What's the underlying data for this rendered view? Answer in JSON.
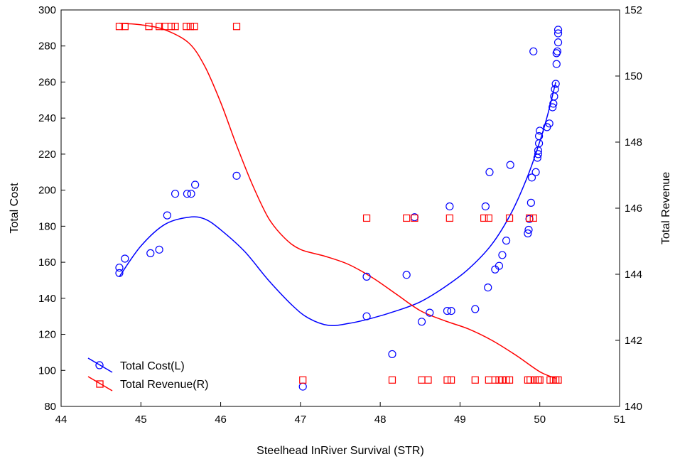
{
  "chart_data": {
    "type": "scatter",
    "title": "",
    "xlabel": "Steelhead InRiver Survival (STR)",
    "ylabel_left": "Total Cost",
    "ylabel_right": "Total Revenue",
    "xlim": [
      44,
      51
    ],
    "ylim_left": [
      80,
      300
    ],
    "ylim_right": [
      140,
      152
    ],
    "x_ticks": [
      "44",
      "45",
      "46",
      "47",
      "48",
      "49",
      "50",
      "51"
    ],
    "y_left_ticks": [
      "80",
      "100",
      "120",
      "140",
      "160",
      "180",
      "200",
      "220",
      "240",
      "260",
      "280",
      "300"
    ],
    "y_right_ticks": [
      "140",
      "142",
      "144",
      "146",
      "148",
      "150",
      "152"
    ],
    "grid": false,
    "legend_position": "bottom-left",
    "series": [
      {
        "name": "Total Cost(L)",
        "axis": "left",
        "color": "#0000ff",
        "marker": "circle",
        "points": [
          [
            44.73,
            157
          ],
          [
            44.73,
            154
          ],
          [
            44.8,
            162
          ],
          [
            45.12,
            165
          ],
          [
            45.23,
            167
          ],
          [
            45.33,
            186
          ],
          [
            45.43,
            198
          ],
          [
            45.58,
            198
          ],
          [
            45.63,
            198
          ],
          [
            45.68,
            203
          ],
          [
            46.2,
            208
          ],
          [
            47.03,
            91
          ],
          [
            47.83,
            152
          ],
          [
            47.83,
            130
          ],
          [
            48.15,
            109
          ],
          [
            48.33,
            153
          ],
          [
            48.43,
            185
          ],
          [
            48.52,
            127
          ],
          [
            48.62,
            132
          ],
          [
            48.84,
            133
          ],
          [
            48.87,
            191
          ],
          [
            48.89,
            133
          ],
          [
            49.19,
            134
          ],
          [
            49.32,
            191
          ],
          [
            49.35,
            146
          ],
          [
            49.37,
            210
          ],
          [
            49.44,
            156
          ],
          [
            49.49,
            158
          ],
          [
            49.53,
            164
          ],
          [
            49.58,
            172
          ],
          [
            49.63,
            214
          ],
          [
            49.85,
            176
          ],
          [
            49.86,
            178
          ],
          [
            49.87,
            184
          ],
          [
            49.89,
            193
          ],
          [
            49.9,
            207
          ],
          [
            49.92,
            277
          ],
          [
            49.95,
            210
          ],
          [
            49.97,
            218
          ],
          [
            49.98,
            220
          ],
          [
            49.98,
            222
          ],
          [
            49.99,
            226
          ],
          [
            49.99,
            230
          ],
          [
            50.0,
            233
          ],
          [
            50.09,
            235
          ],
          [
            50.12,
            237
          ],
          [
            50.16,
            246
          ],
          [
            50.17,
            248
          ],
          [
            50.18,
            252
          ],
          [
            50.19,
            256
          ],
          [
            50.2,
            259
          ],
          [
            50.21,
            270
          ],
          [
            50.21,
            276
          ],
          [
            50.22,
            277
          ],
          [
            50.23,
            282
          ],
          [
            50.23,
            287
          ],
          [
            50.23,
            289
          ]
        ],
        "fit": [
          [
            44.73,
            152
          ],
          [
            45.0,
            169
          ],
          [
            45.3,
            181
          ],
          [
            45.6,
            185
          ],
          [
            45.8,
            184
          ],
          [
            46.0,
            178
          ],
          [
            46.3,
            166
          ],
          [
            46.6,
            150
          ],
          [
            46.9,
            136
          ],
          [
            47.1,
            129
          ],
          [
            47.35,
            125
          ],
          [
            47.6,
            126
          ],
          [
            47.9,
            129
          ],
          [
            48.2,
            133
          ],
          [
            48.5,
            138
          ],
          [
            48.8,
            146
          ],
          [
            49.1,
            156
          ],
          [
            49.4,
            170
          ],
          [
            49.65,
            188
          ],
          [
            49.85,
            208
          ],
          [
            50.0,
            227
          ],
          [
            50.1,
            242
          ],
          [
            50.2,
            260
          ]
        ]
      },
      {
        "name": "Total Revenue(R)",
        "axis": "right",
        "color": "#ff0000",
        "marker": "square",
        "points": [
          [
            44.73,
            151.5
          ],
          [
            44.8,
            151.5
          ],
          [
            45.1,
            151.5
          ],
          [
            45.23,
            151.5
          ],
          [
            45.3,
            151.5
          ],
          [
            45.38,
            151.5
          ],
          [
            45.43,
            151.5
          ],
          [
            45.57,
            151.5
          ],
          [
            45.62,
            151.5
          ],
          [
            45.67,
            151.5
          ],
          [
            46.2,
            151.5
          ],
          [
            47.03,
            140.8
          ],
          [
            47.83,
            145.7
          ],
          [
            48.15,
            140.8
          ],
          [
            48.33,
            145.7
          ],
          [
            48.43,
            145.7
          ],
          [
            48.52,
            140.8
          ],
          [
            48.6,
            140.8
          ],
          [
            48.84,
            140.8
          ],
          [
            48.87,
            145.7
          ],
          [
            48.89,
            140.8
          ],
          [
            49.19,
            140.8
          ],
          [
            49.3,
            145.7
          ],
          [
            49.36,
            145.7
          ],
          [
            49.36,
            140.8
          ],
          [
            49.44,
            140.8
          ],
          [
            49.49,
            140.8
          ],
          [
            49.53,
            140.8
          ],
          [
            49.58,
            140.8
          ],
          [
            49.62,
            145.7
          ],
          [
            49.62,
            140.8
          ],
          [
            49.85,
            140.8
          ],
          [
            49.87,
            145.7
          ],
          [
            49.88,
            140.8
          ],
          [
            49.92,
            145.7
          ],
          [
            49.94,
            140.8
          ],
          [
            49.98,
            140.8
          ],
          [
            50.0,
            140.8
          ],
          [
            50.13,
            140.8
          ],
          [
            50.17,
            140.8
          ],
          [
            50.2,
            140.8
          ],
          [
            50.23,
            140.8
          ]
        ],
        "fit": [
          [
            44.73,
            151.6
          ],
          [
            45.0,
            151.55
          ],
          [
            45.3,
            151.4
          ],
          [
            45.6,
            151.0
          ],
          [
            45.8,
            150.3
          ],
          [
            46.0,
            149.2
          ],
          [
            46.2,
            147.9
          ],
          [
            46.4,
            146.7
          ],
          [
            46.6,
            145.7
          ],
          [
            46.8,
            145.1
          ],
          [
            47.0,
            144.75
          ],
          [
            47.3,
            144.55
          ],
          [
            47.6,
            144.3
          ],
          [
            47.9,
            143.9
          ],
          [
            48.2,
            143.4
          ],
          [
            48.5,
            142.9
          ],
          [
            48.8,
            142.6
          ],
          [
            49.1,
            142.35
          ],
          [
            49.4,
            142.0
          ],
          [
            49.7,
            141.55
          ],
          [
            50.0,
            141.05
          ],
          [
            50.2,
            140.85
          ]
        ]
      }
    ]
  }
}
